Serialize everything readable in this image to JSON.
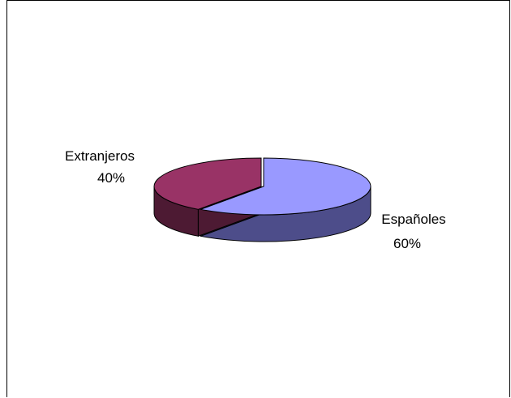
{
  "chart_data": {
    "type": "pie",
    "style": "3d-exploded-tilted",
    "slices": [
      {
        "category": "Españoles",
        "percent_label": "60%",
        "value": 60,
        "top_color": "#9999ff",
        "side_color": "#4d4d8a"
      },
      {
        "category": "Extranjeros",
        "percent_label": "40%",
        "value": 40,
        "top_color": "#993366",
        "side_color": "#4d1a33"
      }
    ],
    "legend": "none"
  }
}
